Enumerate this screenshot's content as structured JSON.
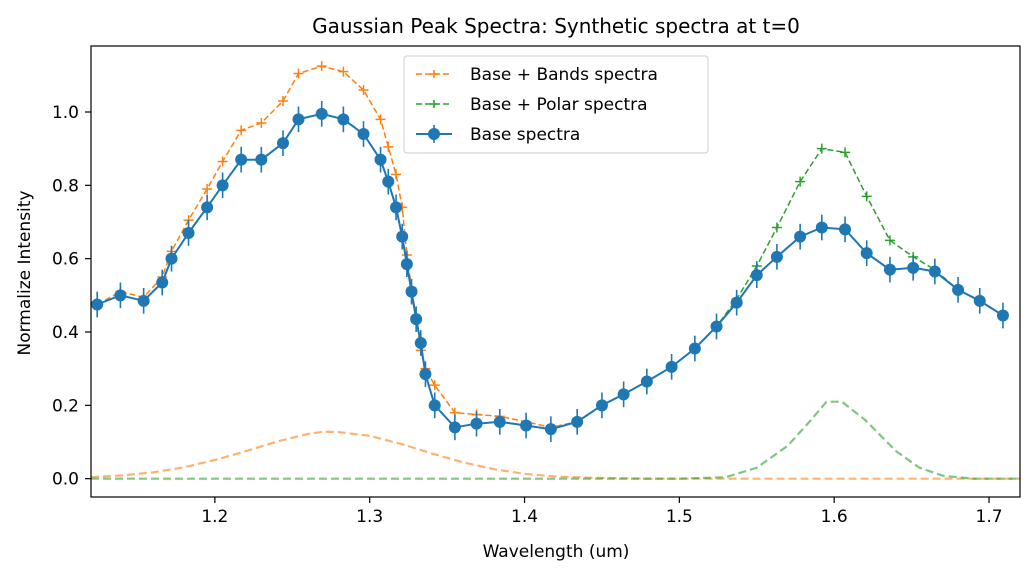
{
  "chart_data": {
    "type": "line",
    "title": "Gaussian Peak Spectra: Synthetic spectra at t=0",
    "xlabel": "Wavelength (um)",
    "ylabel": "Normalize Intensity",
    "xlim": [
      1.12,
      1.72
    ],
    "ylim": [
      -0.05,
      1.18
    ],
    "xticks": [
      1.2,
      1.3,
      1.4,
      1.5,
      1.6,
      1.7
    ],
    "xtick_labels": [
      "1.2",
      "1.3",
      "1.4",
      "1.5",
      "1.6",
      "1.7"
    ],
    "yticks": [
      0.0,
      0.2,
      0.4,
      0.6,
      0.8,
      1.0
    ],
    "ytick_labels": [
      "0.0",
      "0.2",
      "0.4",
      "0.6",
      "0.8",
      "1.0"
    ],
    "grid": false,
    "legend_position": "top-center",
    "x": [
      1.124,
      1.139,
      1.154,
      1.166,
      1.172,
      1.183,
      1.195,
      1.205,
      1.217,
      1.23,
      1.244,
      1.254,
      1.269,
      1.283,
      1.296,
      1.307,
      1.312,
      1.317,
      1.321,
      1.324,
      1.327,
      1.33,
      1.333,
      1.336,
      1.342,
      1.355,
      1.369,
      1.384,
      1.401,
      1.417,
      1.434,
      1.45,
      1.464,
      1.479,
      1.495,
      1.51,
      1.524,
      1.537,
      1.55,
      1.563,
      1.578,
      1.592,
      1.607,
      1.621,
      1.636,
      1.651,
      1.665,
      1.68,
      1.694,
      1.709
    ],
    "series": [
      {
        "name": "Base + Bands spectra",
        "color": "#ff7f0e",
        "style": "dashed-plus",
        "values": [
          0.475,
          0.51,
          0.495,
          0.55,
          0.62,
          0.705,
          0.79,
          0.865,
          0.95,
          0.97,
          1.03,
          1.105,
          1.125,
          1.11,
          1.06,
          0.98,
          0.905,
          0.83,
          0.74,
          0.61,
          0.52,
          0.44,
          0.35,
          0.3,
          0.255,
          0.18,
          0.175,
          0.17,
          0.155,
          0.14,
          0.155,
          0.2,
          0.23,
          0.265,
          0.305,
          0.355,
          0.415,
          0.48,
          0.555,
          0.605,
          0.66,
          0.685,
          0.68,
          0.615,
          0.57,
          0.575,
          0.565,
          0.515,
          0.485,
          0.445
        ]
      },
      {
        "name": "Base + Polar spectra",
        "color": "#2ca02c",
        "style": "dashed-plus",
        "values": [
          0.475,
          0.5,
          0.485,
          0.535,
          0.6,
          0.67,
          0.74,
          0.8,
          0.87,
          0.87,
          0.915,
          0.98,
          0.995,
          0.98,
          0.94,
          0.87,
          0.81,
          0.74,
          0.66,
          0.585,
          0.51,
          0.435,
          0.37,
          0.285,
          0.2,
          0.14,
          0.15,
          0.155,
          0.145,
          0.135,
          0.155,
          0.2,
          0.23,
          0.265,
          0.305,
          0.355,
          0.415,
          0.49,
          0.58,
          0.685,
          0.81,
          0.9,
          0.89,
          0.77,
          0.65,
          0.605,
          0.57,
          0.515,
          0.485,
          0.445
        ]
      },
      {
        "name": "Base spectra",
        "color": "#1f77b4",
        "style": "solid-circle-errorbar",
        "error": 0.035,
        "values": [
          0.475,
          0.5,
          0.485,
          0.535,
          0.6,
          0.67,
          0.74,
          0.8,
          0.87,
          0.87,
          0.915,
          0.98,
          0.995,
          0.98,
          0.94,
          0.87,
          0.81,
          0.74,
          0.66,
          0.585,
          0.51,
          0.435,
          0.37,
          0.285,
          0.2,
          0.14,
          0.15,
          0.155,
          0.145,
          0.135,
          0.155,
          0.2,
          0.23,
          0.265,
          0.305,
          0.355,
          0.415,
          0.48,
          0.555,
          0.605,
          0.66,
          0.685,
          0.68,
          0.615,
          0.57,
          0.575,
          0.565,
          0.515,
          0.485,
          0.445
        ]
      }
    ],
    "components": [
      {
        "color": "#ff7f0e",
        "x": [
          1.12,
          1.14,
          1.16,
          1.18,
          1.2,
          1.22,
          1.24,
          1.26,
          1.27,
          1.28,
          1.3,
          1.32,
          1.34,
          1.36,
          1.38,
          1.4,
          1.42,
          1.44,
          1.48,
          1.52,
          1.56,
          1.6,
          1.64,
          1.68,
          1.72
        ],
        "values": [
          0.004,
          0.009,
          0.017,
          0.031,
          0.051,
          0.075,
          0.101,
          0.122,
          0.128,
          0.127,
          0.117,
          0.095,
          0.069,
          0.045,
          0.026,
          0.013,
          0.006,
          0.003,
          0.0,
          0.0,
          0.0,
          0.0,
          0.0,
          0.0,
          0.0
        ]
      },
      {
        "color": "#2ca02c",
        "x": [
          1.12,
          1.2,
          1.3,
          1.4,
          1.5,
          1.53,
          1.55,
          1.57,
          1.585,
          1.595,
          1.605,
          1.62,
          1.64,
          1.655,
          1.67,
          1.69,
          1.72
        ],
        "values": [
          0.0,
          0.0,
          0.0,
          0.0,
          0.0,
          0.004,
          0.03,
          0.09,
          0.16,
          0.21,
          0.21,
          0.16,
          0.075,
          0.03,
          0.008,
          0.0,
          0.0
        ]
      }
    ]
  }
}
